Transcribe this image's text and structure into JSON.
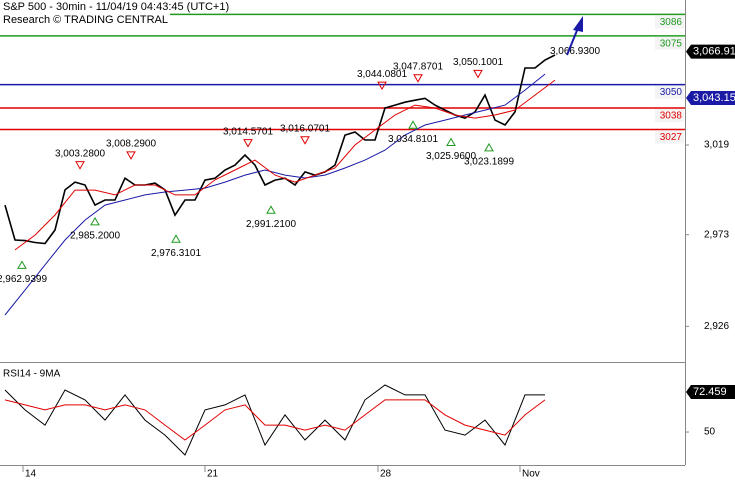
{
  "header": {
    "title": "S&P 500 - 30min - 11/04/19 04:43:45 (UTC+1)",
    "source": "Research © TRADING CENTRAL"
  },
  "chart_data": [
    {
      "type": "line",
      "xlim": [
        -0.5,
        68
      ],
      "xticks": [
        {
          "value": 1.8,
          "label": "14"
        },
        {
          "value": 20,
          "label": "21"
        },
        {
          "value": 37.3,
          "label": "28"
        },
        {
          "value": 51.5,
          "label": "Nov"
        }
      ],
      "ylim": [
        2911.3,
        3093.4
      ],
      "yticks": [
        {
          "value": 3019,
          "label": "3,019"
        },
        {
          "value": 2973,
          "label": "2,973"
        },
        {
          "value": 2926,
          "label": "2,926"
        }
      ],
      "series": [
        {
          "color": "#000000",
          "x": [
            0,
            1,
            2,
            3,
            4,
            5,
            6,
            7,
            8,
            9,
            10,
            11,
            12,
            13,
            14,
            15,
            16,
            17,
            18,
            19,
            20,
            21,
            22,
            23,
            24,
            25,
            26,
            27,
            28,
            29,
            30,
            31,
            32,
            33,
            34,
            35,
            36,
            37,
            38,
            39,
            40,
            41,
            42,
            43,
            44,
            45,
            46,
            47,
            48,
            49,
            50,
            51,
            52,
            53,
            54,
            55
          ],
          "values": [
            2988.2,
            2970.3,
            2970,
            2969,
            2968.5,
            2975.4,
            2996,
            3000,
            2998.5,
            2988.2,
            2990.8,
            2990.8,
            3002,
            2998.5,
            2998.5,
            2999.5,
            2996,
            2983,
            2990.8,
            2990.8,
            3001,
            3002,
            3006.2,
            3008.7,
            3013.9,
            3008.7,
            2998.5,
            3001,
            3002,
            2998.5,
            3005.2,
            3003.6,
            3005.2,
            3008.7,
            3024.1,
            3025.7,
            3021.6,
            3021.6,
            3038,
            3039.5,
            3041,
            3042,
            3043,
            3039.5,
            3036.9,
            3034.4,
            3032.8,
            3036,
            3044.6,
            3031.8,
            3029.3,
            3036,
            3058.5,
            3058.5,
            3062.6,
            3065.2
          ]
        },
        {
          "color": "#1a1aa6",
          "x": [
            0,
            2,
            4,
            6,
            8,
            10,
            12,
            14,
            16,
            18,
            20,
            22,
            24,
            26,
            28,
            30,
            32,
            34,
            36,
            38,
            40,
            42,
            44,
            46,
            48,
            50,
            52,
            54
          ],
          "values": [
            2931.8,
            2944.6,
            2957.5,
            2970.3,
            2980.5,
            2988.2,
            2990.8,
            2993.4,
            2994.9,
            2995.9,
            2996.9,
            3000,
            3003.6,
            3006.2,
            3003.6,
            3002.1,
            3003.6,
            3007.2,
            3011.3,
            3016.4,
            3024.1,
            3029.3,
            3031.8,
            3034.4,
            3036.9,
            3039.5,
            3047.2,
            3055.4
          ]
        },
        {
          "color": "#e00000",
          "x": [
            1,
            3,
            5,
            7,
            9,
            11,
            13,
            15,
            17,
            19,
            21,
            23,
            25,
            27,
            29,
            31,
            33,
            35,
            37,
            39,
            41,
            43,
            45,
            47,
            49,
            51,
            53,
            55
          ],
          "values": [
            2965.2,
            2972.8,
            2983.1,
            2995.9,
            2995.9,
            2993.4,
            2998.5,
            2998.5,
            2993.4,
            2993.4,
            3001.1,
            3006.2,
            3011.3,
            3003.6,
            3000,
            3003.6,
            3007.2,
            3019,
            3026.7,
            3034.4,
            3039.5,
            3038,
            3034.4,
            3032.8,
            3034.4,
            3036.9,
            3044.6,
            3052.3
          ]
        }
      ],
      "levels": [
        {
          "value": 3086,
          "color": "#1f9a1f"
        },
        {
          "value": 3075,
          "color": "#1f9a1f"
        },
        {
          "value": 3050,
          "color": "#1a1aa6"
        },
        {
          "value": 3038,
          "color": "#e00000"
        },
        {
          "value": 3027,
          "color": "#e00000"
        }
      ],
      "price_labels": [
        {
          "value": 3066.91,
          "label": "3,066.91",
          "color": "#000000"
        },
        {
          "value": 3043.15,
          "label": "3,043.15",
          "color": "#1a1aa6"
        }
      ],
      "annotations": [
        {
          "x": 1.7,
          "value": 2962.9399,
          "label": "2,962.9399",
          "kind": "low"
        },
        {
          "x": 7.5,
          "value": 3003.28,
          "label": "3,003.2800",
          "kind": "high"
        },
        {
          "x": 9,
          "value": 2985.2,
          "label": "2,985.2000",
          "kind": "low"
        },
        {
          "x": 12.6,
          "value": 3008.29,
          "label": "3,008.2900",
          "kind": "high"
        },
        {
          "x": 17.1,
          "value": 2976.3101,
          "label": "2,976.3101",
          "kind": "low"
        },
        {
          "x": 24.3,
          "value": 3014.5701,
          "label": "3,014.5701",
          "kind": "high"
        },
        {
          "x": 26.6,
          "value": 2991.21,
          "label": "2,991.2100",
          "kind": "low"
        },
        {
          "x": 30,
          "value": 3016.0701,
          "label": "3,016.0701",
          "kind": "high"
        },
        {
          "x": 37.7,
          "value": 3044.0801,
          "label": "3,044.0801",
          "kind": "high"
        },
        {
          "x": 40.8,
          "value": 3034.8101,
          "label": "3,034.8101",
          "kind": "low"
        },
        {
          "x": 41.3,
          "value": 3047.8701,
          "label": "3,047.8701",
          "kind": "high"
        },
        {
          "x": 44.6,
          "value": 3025.96,
          "label": "3,025.9600",
          "kind": "low"
        },
        {
          "x": 47.3,
          "value": 3050.1001,
          "label": "3,050.1001",
          "kind": "high"
        },
        {
          "x": 48.4,
          "value": 3023.1899,
          "label": "3,023.1899",
          "kind": "low"
        },
        {
          "x": 57,
          "value": 3066.93,
          "label": "3,066.9300",
          "kind": "target"
        }
      ]
    },
    {
      "type": "line",
      "title": "RSI14 - 9MA",
      "xlim": [
        -0.5,
        68
      ],
      "ylim": [
        31.5,
        87.6
      ],
      "yticks": [
        50
      ],
      "series": [
        {
          "color": "#000000",
          "x": [
            0,
            2,
            4,
            6,
            8,
            10,
            12,
            14,
            16,
            18,
            20,
            22,
            24,
            26,
            28,
            30,
            32,
            34,
            36,
            38,
            40,
            42,
            44,
            46,
            48,
            50,
            52,
            54
          ],
          "values": [
            73.6,
            62.4,
            53.9,
            73.6,
            68,
            56.7,
            70.8,
            56.7,
            48.3,
            37.1,
            62.4,
            65.2,
            70.8,
            42.7,
            59.6,
            45.5,
            56.7,
            45.5,
            68,
            76.4,
            70.8,
            70.8,
            51.1,
            48.3,
            56.7,
            42.7,
            70.8,
            70.8
          ]
        },
        {
          "color": "#e00000",
          "x": [
            0,
            2,
            4,
            6,
            8,
            10,
            12,
            14,
            16,
            18,
            20,
            22,
            24,
            26,
            28,
            30,
            32,
            34,
            36,
            38,
            40,
            42,
            44,
            46,
            48,
            50,
            52,
            54
          ],
          "values": [
            68,
            65.2,
            62.4,
            65.2,
            65.2,
            62.4,
            65.2,
            62.4,
            53.9,
            45.5,
            53.9,
            62.4,
            65.2,
            53.9,
            53.9,
            51.1,
            53.9,
            51.1,
            59.6,
            68,
            68,
            68,
            59.6,
            53.9,
            51.1,
            48.3,
            59.6,
            68
          ]
        }
      ],
      "price_labels": [
        {
          "value": 72.459,
          "label": "72.459",
          "color": "#000000"
        }
      ]
    }
  ]
}
